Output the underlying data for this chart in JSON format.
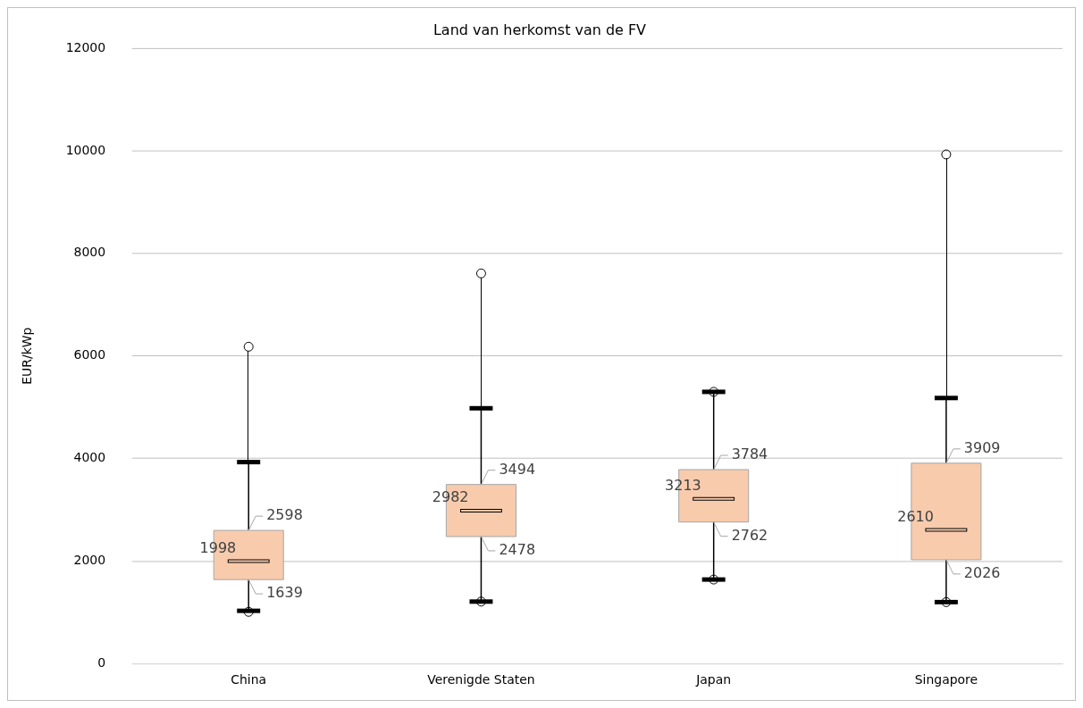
{
  "chart_data": {
    "type": "box",
    "title": "Land van herkomst van de FV",
    "ylabel": "EUR/kWp",
    "categories": [
      "China",
      "Verenigde Staten",
      "Japan",
      "Singapore"
    ],
    "boxes": [
      {
        "low": 1030,
        "q1": 1639,
        "median": 1998,
        "q3": 2598,
        "high": 3930,
        "outliers": [
          1010,
          6180
        ]
      },
      {
        "low": 1210,
        "q1": 2478,
        "median": 2982,
        "q3": 3494,
        "high": 4980,
        "outliers": [
          1210,
          7610
        ]
      },
      {
        "low": 1640,
        "q1": 2762,
        "median": 3213,
        "q3": 3784,
        "high": 5300,
        "outliers": [
          1640,
          5300
        ]
      },
      {
        "low": 1200,
        "q1": 2026,
        "median": 2610,
        "q3": 3909,
        "high": 5180,
        "outliers": [
          1200,
          9930
        ]
      }
    ],
    "annotations": [
      {
        "text": "2598",
        "x": "China",
        "y": 2598
      },
      {
        "text": "1998",
        "x": "China",
        "y": 1998
      },
      {
        "text": "1639",
        "x": "China",
        "y": 1639
      },
      {
        "text": "3494",
        "x": "Verenigde Staten",
        "y": 3494
      },
      {
        "text": "2982",
        "x": "Verenigde Staten",
        "y": 2982
      },
      {
        "text": "2478",
        "x": "Verenigde Staten",
        "y": 2478
      },
      {
        "text": "3784",
        "x": "Japan",
        "y": 3784
      },
      {
        "text": "3213",
        "x": "Japan",
        "y": 3213
      },
      {
        "text": "2762",
        "x": "Japan",
        "y": 2762
      },
      {
        "text": "3909",
        "x": "Singapore",
        "y": 3909
      },
      {
        "text": "2610",
        "x": "Singapore",
        "y": 2610
      },
      {
        "text": "2026",
        "x": "Singapore",
        "y": 2026
      }
    ],
    "color": "#f8cbad",
    "ylim": [
      0,
      12000
    ],
    "yticks": [
      0,
      2000,
      4000,
      6000,
      8000,
      10000,
      12000
    ],
    "grid": "y",
    "legend": false
  }
}
